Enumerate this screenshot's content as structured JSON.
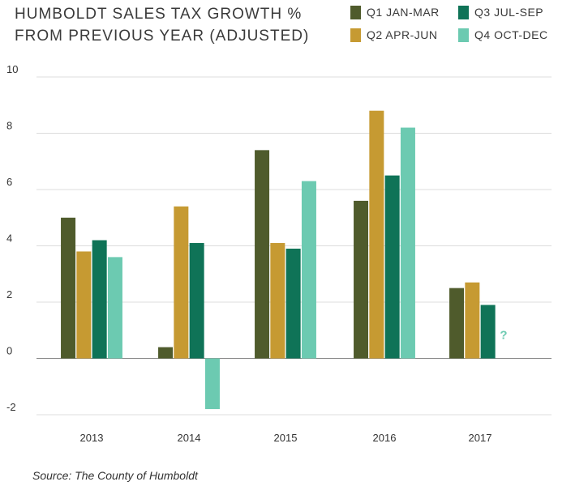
{
  "chart_data": {
    "type": "bar",
    "title_lines": [
      "HUMBOLDT SALES TAX GROWTH %",
      "FROM PREVIOUS YEAR (ADJUSTED)"
    ],
    "categories": [
      "2013",
      "2014",
      "2015",
      "2016",
      "2017"
    ],
    "series": [
      {
        "name": "Q1 JAN-MAR",
        "color": "#4f5b2c",
        "values": [
          5.0,
          0.4,
          7.4,
          5.6,
          2.5
        ]
      },
      {
        "name": "Q2 APR-JUN",
        "color": "#c69a32",
        "values": [
          3.8,
          5.4,
          4.1,
          8.8,
          2.7
        ]
      },
      {
        "name": "Q3 JUL-SEP",
        "color": "#0f7357",
        "values": [
          4.2,
          4.1,
          3.9,
          6.5,
          1.9
        ]
      },
      {
        "name": "Q4 OCT-DEC",
        "color": "#6ccab1",
        "values": [
          3.6,
          -1.8,
          6.3,
          8.2,
          null
        ]
      }
    ],
    "ylim": [
      -2,
      10
    ],
    "yticks": [
      "10",
      "8",
      "6",
      "4",
      "2",
      "0",
      "-2"
    ],
    "missing_marker": "?",
    "grid": true,
    "legend_position": "top-right",
    "source": "Source: The County of Humboldt"
  }
}
